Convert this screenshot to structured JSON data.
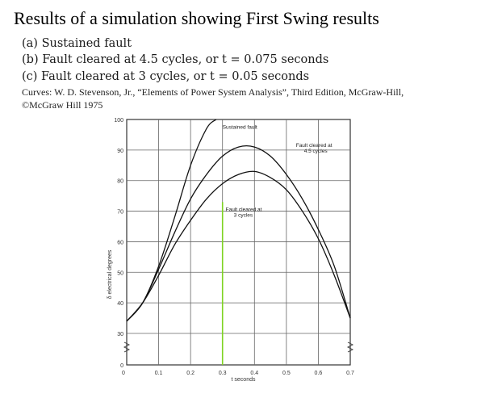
{
  "header": {
    "title": "Results of a simulation showing First Swing results",
    "cases": [
      "(a) Sustained fault",
      "(b) Fault cleared at 4.5 cycles, or t = 0.075 seconds",
      "(c) Fault cleared at 3 cycles, or t = 0.05 seconds"
    ],
    "credit_line1": "Curves: W. D. Stevenson, Jr., “Elements of Power System Analysis”, Third Edition, McGraw-Hill,",
    "credit_line2": "©McGraw Hill 1975"
  },
  "chart_data": {
    "type": "line",
    "title": "",
    "xlabel": "t seconds",
    "ylabel": "δ electrical degrees",
    "xlim": [
      0,
      0.7
    ],
    "ylim": [
      0,
      100
    ],
    "x_ticks": [
      "0",
      "0.1",
      "0.2",
      "0.3",
      "0.4",
      "0.5",
      "0.6",
      "0.7"
    ],
    "y_ticks": [
      "0",
      "30",
      "40",
      "50",
      "60",
      "70",
      "80",
      "90",
      "100"
    ],
    "grid": true,
    "y_axis_break": true,
    "marker_line": {
      "x": 0.3,
      "color": "#7ed321"
    },
    "series": [
      {
        "name": "Sustained fault",
        "x": [
          0,
          0.05,
          0.1,
          0.15,
          0.2,
          0.25,
          0.28
        ],
        "y": [
          34,
          40,
          52,
          68,
          85,
          97,
          100
        ]
      },
      {
        "name": "Fault cleared at 4.5 cycles",
        "x": [
          0,
          0.05,
          0.1,
          0.15,
          0.2,
          0.25,
          0.3,
          0.35,
          0.4,
          0.45,
          0.5,
          0.55,
          0.6,
          0.65,
          0.7
        ],
        "y": [
          34,
          40,
          51,
          63,
          74,
          82,
          88,
          91,
          91,
          88,
          82,
          74,
          64,
          52,
          35
        ]
      },
      {
        "name": "Fault cleared at 3 cycles",
        "x": [
          0,
          0.05,
          0.1,
          0.15,
          0.2,
          0.25,
          0.3,
          0.35,
          0.4,
          0.45,
          0.5,
          0.55,
          0.6,
          0.65,
          0.7
        ],
        "y": [
          34,
          40,
          49,
          59,
          67,
          74,
          79,
          82,
          83,
          81,
          77,
          70,
          61,
          49,
          35
        ]
      }
    ],
    "annotations": [
      {
        "text": "Sustained fault",
        "x": 0.3,
        "y": 97
      },
      {
        "text": "Fault cleared at",
        "text2": "4.5 cycles",
        "x": 0.53,
        "y": 91
      },
      {
        "text": "Fault cleared at",
        "text2": "3 cycles",
        "x": 0.31,
        "y": 70
      }
    ]
  }
}
